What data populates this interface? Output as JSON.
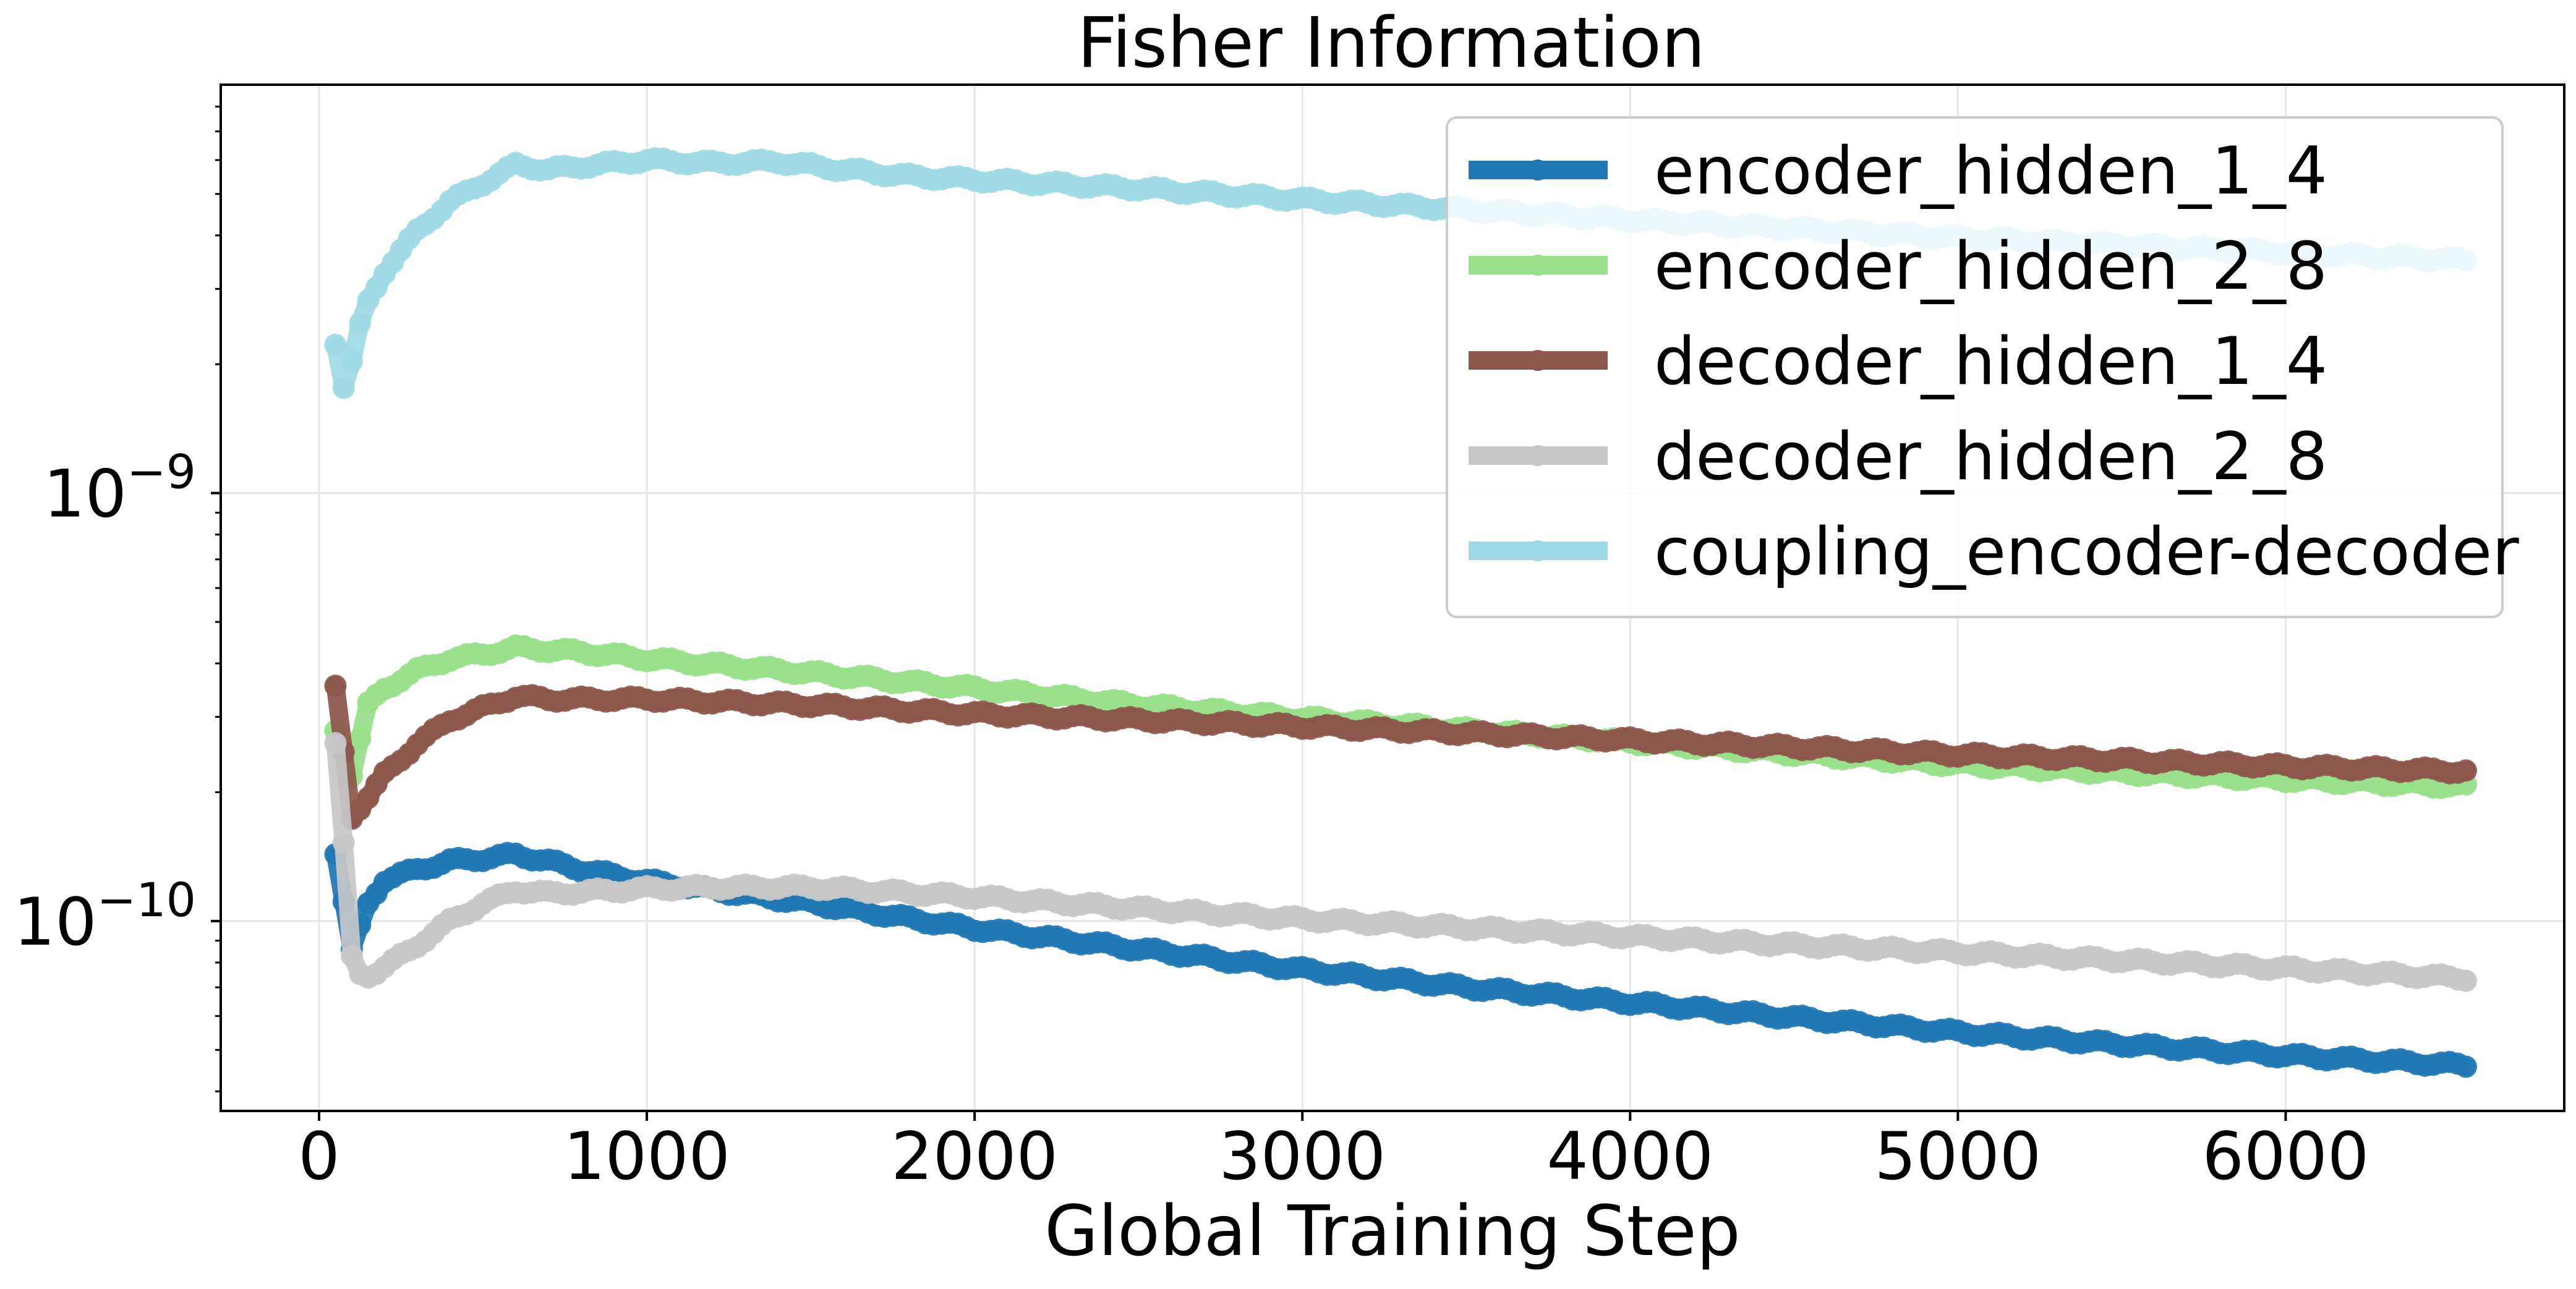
{
  "chart_data": {
    "type": "line",
    "title": "Fisher Information",
    "xlabel": "Global Training Step",
    "ylabel": "",
    "yscale": "log",
    "xlim": [
      -300,
      6850
    ],
    "ylim": [
      3.6e-11,
      9e-09
    ],
    "xticks": [
      0,
      1000,
      2000,
      3000,
      4000,
      5000,
      6000
    ],
    "xtick_labels": [
      "0",
      "1000",
      "2000",
      "3000",
      "4000",
      "5000",
      "6000"
    ],
    "yticks": [
      {
        "value": 1e-09,
        "base": "10",
        "exponent": "−9"
      },
      {
        "value": 1e-10,
        "base": "10",
        "exponent": "−10"
      }
    ],
    "grid": true,
    "legend_position": "top-right",
    "series": [
      {
        "name": "encoder_hidden_1_4",
        "color": "#1f77b4",
        "x": [
          50,
          100,
          150,
          200,
          300,
          400,
          500,
          600,
          700,
          800,
          1000,
          1500,
          2000,
          2500,
          3000,
          3500,
          4000,
          4500,
          5000,
          5500,
          6000,
          6550
        ],
        "y": [
          1.45e-10,
          8.5e-11,
          1.1e-10,
          1.25e-10,
          1.32e-10,
          1.38e-10,
          1.4e-10,
          1.43e-10,
          1.38e-10,
          1.32e-10,
          1.24e-10,
          1.1e-10,
          9.6e-11,
          8.6e-11,
          7.7e-11,
          7e-11,
          6.45e-11,
          5.95e-11,
          5.5e-11,
          5.15e-11,
          4.85e-11,
          4.6e-11
        ]
      },
      {
        "name": "encoder_hidden_2_8",
        "color": "#98df8a",
        "x": [
          50,
          100,
          150,
          200,
          300,
          400,
          500,
          600,
          700,
          800,
          1000,
          1500,
          2000,
          2500,
          3000,
          3500,
          4000,
          4500,
          5000,
          5500,
          6000,
          6550
        ],
        "y": [
          2.8e-10,
          2.2e-10,
          3.2e-10,
          3.5e-10,
          3.85e-10,
          4.1e-10,
          4.2e-10,
          4.35e-10,
          4.3e-10,
          4.25e-10,
          4.1e-10,
          3.8e-10,
          3.5e-10,
          3.2e-10,
          2.98e-10,
          2.8e-10,
          2.62e-10,
          2.46e-10,
          2.32e-10,
          2.22e-10,
          2.14e-10,
          2.06e-10
        ]
      },
      {
        "name": "decoder_hidden_1_4",
        "color": "#8c564b",
        "x": [
          50,
          100,
          150,
          200,
          300,
          400,
          500,
          600,
          700,
          800,
          1000,
          1500,
          2000,
          2500,
          3000,
          3500,
          4000,
          4500,
          5000,
          5500,
          6000,
          6550
        ],
        "y": [
          3.5e-10,
          1.75e-10,
          1.95e-10,
          2.2e-10,
          2.6e-10,
          2.95e-10,
          3.15e-10,
          3.35e-10,
          3.3e-10,
          3.3e-10,
          3.3e-10,
          3.2e-10,
          3.05e-10,
          2.95e-10,
          2.85e-10,
          2.75e-10,
          2.65e-10,
          2.55e-10,
          2.45e-10,
          2.38e-10,
          2.3e-10,
          2.24e-10
        ]
      },
      {
        "name": "decoder_hidden_2_8",
        "color": "#c7c7c7",
        "x": [
          50,
          80,
          100,
          130,
          160,
          200,
          300,
          400,
          500,
          600,
          700,
          800,
          1000,
          1200,
          1500,
          2000,
          2500,
          3000,
          3500,
          4000,
          4500,
          5000,
          5500,
          6000,
          6550
        ],
        "y": [
          2.6e-10,
          1.35e-10,
          8.2e-11,
          7.4e-11,
          7.5e-11,
          7.8e-11,
          8.8e-11,
          1e-10,
          1.1e-10,
          1.18e-10,
          1.16e-10,
          1.17e-10,
          1.19e-10,
          1.2e-10,
          1.2e-10,
          1.14e-10,
          1.07e-10,
          1.01e-10,
          9.65e-11,
          9.2e-11,
          8.8e-11,
          8.45e-11,
          8.1e-11,
          7.75e-11,
          7.35e-11
        ]
      },
      {
        "name": "coupling_encoder-decoder",
        "color": "#9edae5",
        "x": [
          50,
          70,
          90,
          120,
          150,
          200,
          300,
          400,
          500,
          600,
          700,
          800,
          1000,
          1200,
          1400,
          1600,
          1800,
          2000,
          2500,
          3000,
          3500,
          4000,
          4500,
          5000,
          5500,
          6000,
          6550
        ],
        "y": [
          2.25e-09,
          1.75e-09,
          1.85e-09,
          2.4e-09,
          2.8e-09,
          3.3e-09,
          4.1e-09,
          4.8e-09,
          5.3e-09,
          5.85e-09,
          5.7e-09,
          5.8e-09,
          6e-09,
          5.9e-09,
          5.95e-09,
          5.7e-09,
          5.5e-09,
          5.4e-09,
          5.15e-09,
          4.85e-09,
          4.6e-09,
          4.35e-09,
          4.15e-09,
          3.95e-09,
          3.8e-09,
          3.65e-09,
          3.5e-09
        ]
      }
    ]
  }
}
